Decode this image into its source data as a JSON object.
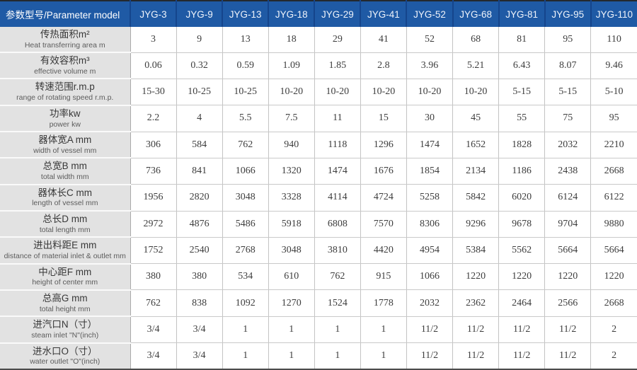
{
  "table": {
    "header": {
      "label": "参数型号/Parameter model",
      "models": [
        "JYG-3",
        "JYG-9",
        "JYG-13",
        "JYG-18",
        "JYG-29",
        "JYG-41",
        "JYG-52",
        "JYG-68",
        "JYG-81",
        "JYG-95",
        "JYG-110"
      ]
    },
    "rows": [
      {
        "zh": "传热面积m²",
        "en": "Heat transferring area m",
        "values": [
          "3",
          "9",
          "13",
          "18",
          "29",
          "41",
          "52",
          "68",
          "81",
          "95",
          "110"
        ]
      },
      {
        "zh": "有效容积m³",
        "en": "effective volume m",
        "values": [
          "0.06",
          "0.32",
          "0.59",
          "1.09",
          "1.85",
          "2.8",
          "3.96",
          "5.21",
          "6.43",
          "8.07",
          "9.46"
        ]
      },
      {
        "zh": "转速范围r.m.p",
        "en": "range of rotating speed r.m.p.",
        "values": [
          "15-30",
          "10-25",
          "10-25",
          "10-20",
          "10-20",
          "10-20",
          "10-20",
          "10-20",
          "5-15",
          "5-15",
          "5-10"
        ]
      },
      {
        "zh": "功率kw",
        "en": "power kw",
        "values": [
          "2.2",
          "4",
          "5.5",
          "7.5",
          "11",
          "15",
          "30",
          "45",
          "55",
          "75",
          "95"
        ]
      },
      {
        "zh": "器体宽A mm",
        "en": "width of vessel mm",
        "values": [
          "306",
          "584",
          "762",
          "940",
          "1118",
          "1296",
          "1474",
          "1652",
          "1828",
          "2032",
          "2210"
        ]
      },
      {
        "zh": "总宽B mm",
        "en": "total width mm",
        "values": [
          "736",
          "841",
          "1066",
          "1320",
          "1474",
          "1676",
          "1854",
          "2134",
          "1186",
          "2438",
          "2668"
        ]
      },
      {
        "zh": "器体长C mm",
        "en": "length of vessel mm",
        "values": [
          "1956",
          "2820",
          "3048",
          "3328",
          "4114",
          "4724",
          "5258",
          "5842",
          "6020",
          "6124",
          "6122"
        ]
      },
      {
        "zh": "总长D mm",
        "en": "total length mm",
        "values": [
          "2972",
          "4876",
          "5486",
          "5918",
          "6808",
          "7570",
          "8306",
          "9296",
          "9678",
          "9704",
          "9880"
        ]
      },
      {
        "zh": "进出料距E mm",
        "en": "distance of material inlet & outlet mm",
        "values": [
          "1752",
          "2540",
          "2768",
          "3048",
          "3810",
          "4420",
          "4954",
          "5384",
          "5562",
          "5664",
          "5664"
        ]
      },
      {
        "zh": "中心距F mm",
        "en": "height of center mm",
        "values": [
          "380",
          "380",
          "534",
          "610",
          "762",
          "915",
          "1066",
          "1220",
          "1220",
          "1220",
          "1220"
        ]
      },
      {
        "zh": "总高G mm",
        "en": "total height mm",
        "values": [
          "762",
          "838",
          "1092",
          "1270",
          "1524",
          "1778",
          "2032",
          "2362",
          "2464",
          "2566",
          "2668"
        ]
      },
      {
        "zh": "进汽口N（寸）",
        "en": "steam inlet \"N\"(inch)",
        "values": [
          "3/4",
          "3/4",
          "1",
          "1",
          "1",
          "1",
          "11/2",
          "11/2",
          "11/2",
          "11/2",
          "2"
        ]
      },
      {
        "zh": "进水口O（寸）",
        "en": "water outlet \"O\"(inch)",
        "values": [
          "3/4",
          "3/4",
          "1",
          "1",
          "1",
          "1",
          "11/2",
          "11/2",
          "11/2",
          "11/2",
          "2"
        ]
      }
    ],
    "colors": {
      "header_bg": "#1f5aa5",
      "header_divider": "#15458c",
      "label_bg": "#e2e2e2",
      "grid_line": "#c9c9c9",
      "top_border": "#24292e",
      "bottom_border": "#4c4c4c"
    }
  }
}
